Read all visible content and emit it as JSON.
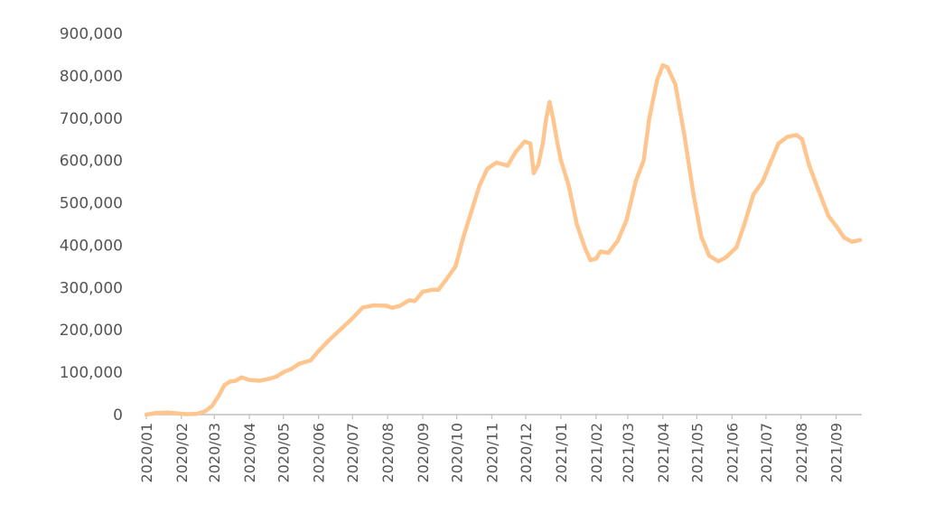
{
  "chart_data": {
    "type": "line",
    "title": "",
    "xlabel": "",
    "ylabel": "",
    "ylim": [
      0,
      900000
    ],
    "grid": false,
    "legend": "none",
    "line_color": "#FFC58F",
    "axis_color": "#BFBFBF",
    "y_ticks": [
      {
        "value": 0,
        "label": "0"
      },
      {
        "value": 100000,
        "label": "100,000"
      },
      {
        "value": 200000,
        "label": "200,000"
      },
      {
        "value": 300000,
        "label": "300,000"
      },
      {
        "value": 400000,
        "label": "400,000"
      },
      {
        "value": 500000,
        "label": "500,000"
      },
      {
        "value": 600000,
        "label": "600,000"
      },
      {
        "value": 700000,
        "label": "700,000"
      },
      {
        "value": 800000,
        "label": "800,000"
      },
      {
        "value": 900000,
        "label": "900,000"
      }
    ],
    "x_tick_labels": [
      "2020/01",
      "2020/02",
      "2020/03",
      "2020/04",
      "2020/05",
      "2020/06",
      "2020/07",
      "2020/08",
      "2020/09",
      "2020/10",
      "2020/11",
      "2020/12",
      "2021/01",
      "2021/02",
      "2021/03",
      "2021/04",
      "2021/05",
      "2021/06",
      "2021/07",
      "2021/08",
      "2021/09"
    ],
    "x_range": [
      "2020-01-01",
      "2021-09-22"
    ],
    "series": [
      {
        "name": "",
        "points": [
          [
            "2020-01-01",
            0
          ],
          [
            "2020-01-10",
            4000
          ],
          [
            "2020-01-20",
            5000
          ],
          [
            "2020-01-28",
            3000
          ],
          [
            "2020-02-05",
            1000
          ],
          [
            "2020-02-15",
            2000
          ],
          [
            "2020-02-22",
            8000
          ],
          [
            "2020-02-28",
            20000
          ],
          [
            "2020-03-05",
            45000
          ],
          [
            "2020-03-10",
            70000
          ],
          [
            "2020-03-15",
            78000
          ],
          [
            "2020-03-20",
            80000
          ],
          [
            "2020-03-25",
            88000
          ],
          [
            "2020-04-01",
            82000
          ],
          [
            "2020-04-10",
            80000
          ],
          [
            "2020-04-18",
            84000
          ],
          [
            "2020-04-25",
            90000
          ],
          [
            "2020-05-01",
            100000
          ],
          [
            "2020-05-08",
            108000
          ],
          [
            "2020-05-15",
            120000
          ],
          [
            "2020-05-25",
            128000
          ],
          [
            "2020-06-01",
            150000
          ],
          [
            "2020-06-10",
            175000
          ],
          [
            "2020-06-20",
            200000
          ],
          [
            "2020-06-30",
            225000
          ],
          [
            "2020-07-10",
            253000
          ],
          [
            "2020-07-20",
            258000
          ],
          [
            "2020-07-31",
            257000
          ],
          [
            "2020-08-05",
            252000
          ],
          [
            "2020-08-12",
            257000
          ],
          [
            "2020-08-20",
            270000
          ],
          [
            "2020-08-25",
            268000
          ],
          [
            "2020-09-01",
            290000
          ],
          [
            "2020-09-10",
            295000
          ],
          [
            "2020-09-15",
            295000
          ],
          [
            "2020-09-22",
            320000
          ],
          [
            "2020-09-30",
            350000
          ],
          [
            "2020-10-07",
            420000
          ],
          [
            "2020-10-14",
            480000
          ],
          [
            "2020-10-21",
            540000
          ],
          [
            "2020-10-28",
            580000
          ],
          [
            "2020-11-05",
            595000
          ],
          [
            "2020-11-15",
            588000
          ],
          [
            "2020-11-22",
            620000
          ],
          [
            "2020-11-30",
            645000
          ],
          [
            "2020-12-05",
            640000
          ],
          [
            "2020-12-08",
            570000
          ],
          [
            "2020-12-12",
            590000
          ],
          [
            "2020-12-16",
            640000
          ],
          [
            "2020-12-19",
            700000
          ],
          [
            "2020-12-22",
            738000
          ],
          [
            "2020-12-25",
            700000
          ],
          [
            "2020-12-29",
            640000
          ],
          [
            "2021-01-01",
            600000
          ],
          [
            "2021-01-08",
            540000
          ],
          [
            "2021-01-15",
            450000
          ],
          [
            "2021-01-22",
            395000
          ],
          [
            "2021-01-27",
            365000
          ],
          [
            "2021-02-01",
            368000
          ],
          [
            "2021-02-05",
            385000
          ],
          [
            "2021-02-12",
            382000
          ],
          [
            "2021-02-20",
            410000
          ],
          [
            "2021-02-28",
            460000
          ],
          [
            "2021-03-08",
            550000
          ],
          [
            "2021-03-15",
            600000
          ],
          [
            "2021-03-20",
            700000
          ],
          [
            "2021-03-27",
            790000
          ],
          [
            "2021-04-01",
            825000
          ],
          [
            "2021-04-05",
            820000
          ],
          [
            "2021-04-12",
            780000
          ],
          [
            "2021-04-20",
            660000
          ],
          [
            "2021-04-28",
            520000
          ],
          [
            "2021-05-05",
            420000
          ],
          [
            "2021-05-12",
            375000
          ],
          [
            "2021-05-20",
            362000
          ],
          [
            "2021-05-27",
            372000
          ],
          [
            "2021-06-05",
            395000
          ],
          [
            "2021-06-12",
            450000
          ],
          [
            "2021-06-20",
            520000
          ],
          [
            "2021-06-28",
            550000
          ],
          [
            "2021-07-05",
            595000
          ],
          [
            "2021-07-12",
            640000
          ],
          [
            "2021-07-20",
            656000
          ],
          [
            "2021-07-28",
            660000
          ],
          [
            "2021-08-02",
            650000
          ],
          [
            "2021-08-08",
            590000
          ],
          [
            "2021-08-15",
            540000
          ],
          [
            "2021-08-25",
            470000
          ],
          [
            "2021-09-01",
            445000
          ],
          [
            "2021-09-08",
            418000
          ],
          [
            "2021-09-15",
            408000
          ],
          [
            "2021-09-22",
            412000
          ]
        ]
      }
    ]
  }
}
